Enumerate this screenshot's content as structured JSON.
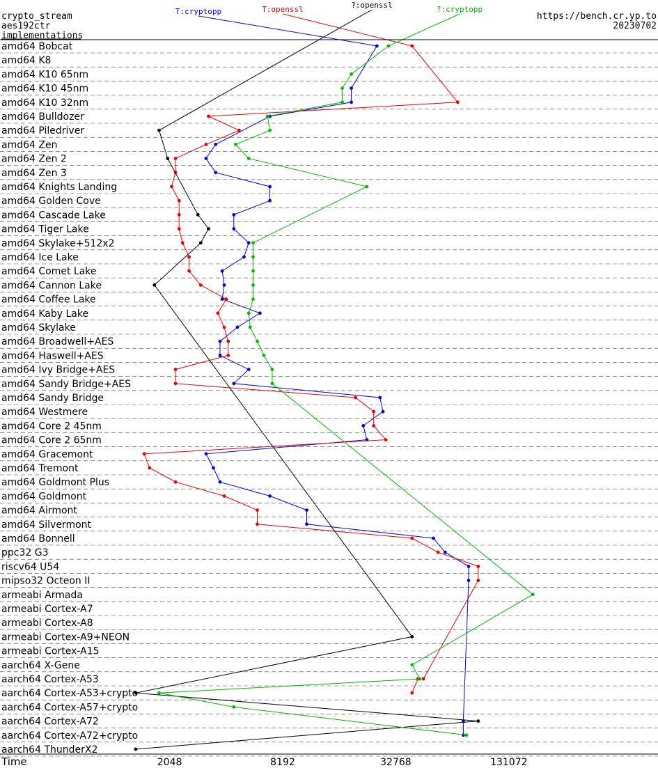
{
  "header": {
    "title_lines": [
      "crypto_stream",
      "aes192ctr",
      "implementations"
    ],
    "site": "https://bench.cr.yp.to",
    "date": "20230702"
  },
  "legend": [
    {
      "name": "T:cryptopp",
      "color": "#0000ee"
    },
    {
      "name": "T:openssl",
      "color": "#ee0000"
    },
    {
      "name": "?:openssl",
      "color": "#000000"
    },
    {
      "name": "?:cryptopp",
      "color": "#00bb00"
    }
  ],
  "chart_data": {
    "type": "line",
    "xlabel": "Time",
    "x_scale": "log2",
    "xlim": [
      256,
      524288
    ],
    "x_ticks": [
      2048,
      8192,
      32768,
      131072
    ],
    "categories": [
      "amd64 Bobcat",
      "amd64 K8",
      "amd64 K10 65nm",
      "amd64 K10 45nm",
      "amd64 K10 32nm",
      "amd64 Bulldozer",
      "amd64 Piledriver",
      "amd64 Zen",
      "amd64 Zen 2",
      "amd64 Zen 3",
      "amd64 Knights Landing",
      "amd64 Golden Cove",
      "amd64 Cascade Lake",
      "amd64 Tiger Lake",
      "amd64 Skylake+512x2",
      "amd64 Ice Lake",
      "amd64 Comet Lake",
      "amd64 Cannon Lake",
      "amd64 Coffee Lake",
      "amd64 Kaby Lake",
      "amd64 Skylake",
      "amd64 Broadwell+AES",
      "amd64 Haswell+AES",
      "amd64 Ivy Bridge+AES",
      "amd64 Sandy Bridge+AES",
      "amd64 Sandy Bridge",
      "amd64 Westmere",
      "amd64 Core 2 45nm",
      "amd64 Core 2 65nm",
      "amd64 Gracemont",
      "amd64 Tremont",
      "amd64 Goldmont Plus",
      "amd64 Goldmont",
      "amd64 Airmont",
      "amd64 Silvermont",
      "amd64 Bonnell",
      "ppc32 G3",
      "riscv64 U54",
      "mipso32 Octeon II",
      "armeabi Armada",
      "armeabi Cortex-A7",
      "armeabi Cortex-A8",
      "armeabi Cortex-A9+NEON",
      "armeabi Cortex-A15",
      "aarch64 X-Gene",
      "aarch64 Cortex-A53",
      "aarch64 Cortex-A53+crypto",
      "aarch64 Cortex-A57+crypto",
      "aarch64 Cortex-A72",
      "aarch64 Cortex-A72+crypto",
      "aarch64 ThunderX2"
    ],
    "series": [
      {
        "name": "T:cryptopp",
        "color": "#0000ee",
        "values": [
          26000,
          null,
          null,
          19000,
          19000,
          7000,
          null,
          3600,
          3200,
          3600,
          7000,
          7000,
          4500,
          4500,
          5400,
          5100,
          3900,
          4000,
          3900,
          6200,
          4700,
          3800,
          3800,
          5400,
          4500,
          27000,
          28000,
          22000,
          23000,
          3200,
          3500,
          3800,
          7000,
          11000,
          11000,
          52000,
          60000,
          80000,
          80000,
          null,
          null,
          null,
          null,
          null,
          null,
          null,
          null,
          null,
          75000,
          75000,
          null
        ]
      },
      {
        "name": "T:openssl",
        "color": "#ee0000",
        "values": [
          40000,
          null,
          null,
          null,
          70000,
          3300,
          4800,
          3200,
          2200,
          2200,
          2100,
          2300,
          2300,
          2300,
          2400,
          2600,
          2600,
          3000,
          4100,
          3700,
          4000,
          4200,
          4200,
          2200,
          2200,
          20000,
          25000,
          25000,
          29000,
          1500,
          1600,
          2200,
          4000,
          6000,
          6000,
          40000,
          55000,
          90000,
          90000,
          null,
          null,
          null,
          null,
          null,
          null,
          46000,
          null,
          null,
          null,
          null,
          null
        ]
      },
      {
        "name": "T:openssl",
        "color": "#ee0000",
        "values": [
          null,
          null,
          null,
          null,
          null,
          null,
          null,
          null,
          null,
          null,
          null,
          null,
          null,
          null,
          null,
          null,
          null,
          null,
          null,
          null,
          null,
          null,
          null,
          null,
          null,
          null,
          null,
          null,
          null,
          null,
          null,
          null,
          null,
          null,
          null,
          null,
          null,
          null,
          null,
          null,
          null,
          null,
          null,
          null,
          null,
          43000,
          40000,
          null,
          null,
          null,
          null
        ]
      },
      {
        "name": "?:openssl",
        "color": "#000000",
        "values": [
          null,
          null,
          null,
          null,
          null,
          null,
          1800,
          null,
          2000,
          null,
          null,
          null,
          2900,
          3300,
          3000,
          null,
          null,
          1700,
          null,
          null,
          null,
          null,
          null,
          null,
          null,
          null,
          null,
          null,
          null,
          null,
          null,
          null,
          null,
          null,
          null,
          null,
          null,
          null,
          null,
          null,
          null,
          null,
          40000,
          null,
          null,
          null,
          1350,
          null,
          90000,
          null,
          1350
        ]
      },
      {
        "name": "?:cryptopp",
        "color": "#00bb00",
        "values": [
          30000,
          null,
          19000,
          17000,
          17000,
          6800,
          7000,
          4600,
          5400,
          null,
          23000,
          null,
          null,
          null,
          5700,
          5700,
          5700,
          5700,
          5700,
          5400,
          5500,
          6000,
          6500,
          7200,
          7200,
          null,
          null,
          null,
          null,
          null,
          null,
          null,
          null,
          null,
          null,
          null,
          null,
          null,
          null,
          176000,
          null,
          null,
          null,
          null,
          40000,
          44000,
          1800,
          4500,
          null,
          78000,
          null
        ]
      }
    ]
  }
}
